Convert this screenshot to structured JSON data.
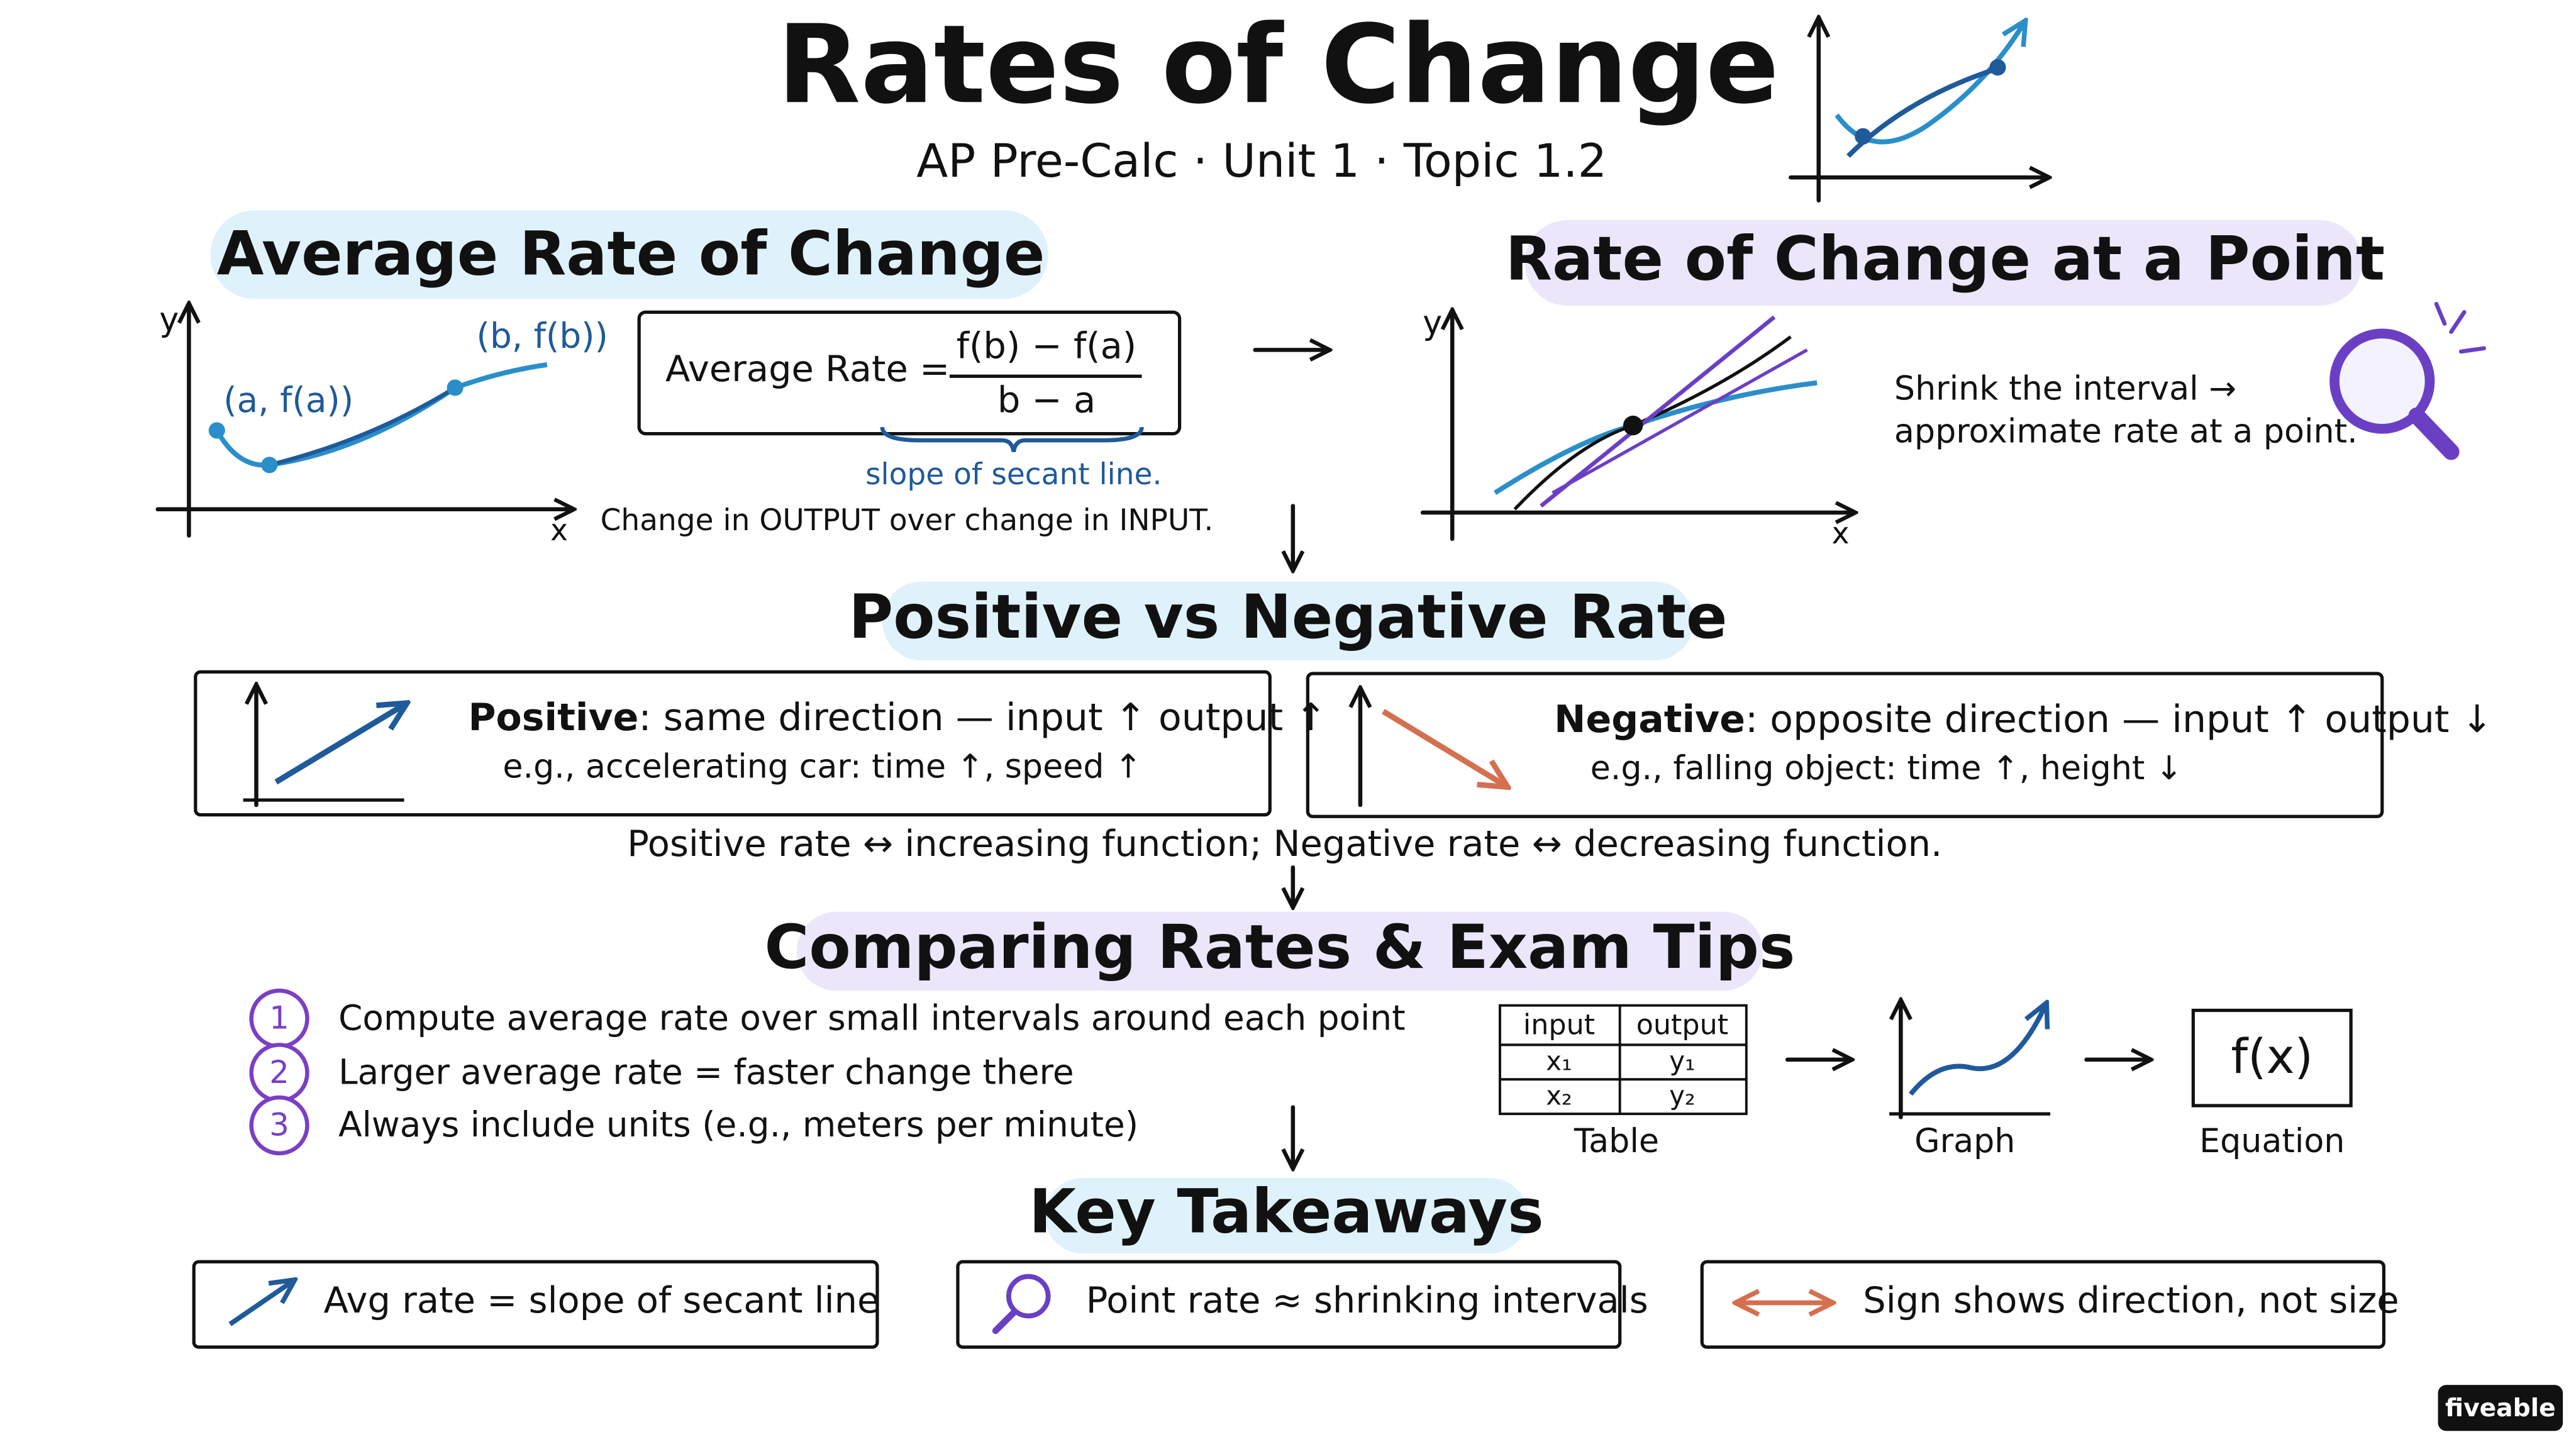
{
  "header": {
    "title": "Rates of Change",
    "subtitle": "AP Pre-Calc · Unit 1 · Topic 1.2"
  },
  "average": {
    "heading": "Average Rate of Change",
    "y_label": "y",
    "x_label": "x",
    "point_a": "(a, f(a))",
    "point_b": "(b, f(b))",
    "formula_label": "Average Rate =",
    "numerator": "f(b) − f(a)",
    "denominator": "b − a",
    "brace_note": "slope of secant line.",
    "caption": "Change in OUTPUT over change in INPUT."
  },
  "point": {
    "heading": "Rate of Change at a Point",
    "y_label": "y",
    "x_label": "x",
    "note": [
      "Shrink the interval →",
      "approximate rate at a point."
    ]
  },
  "sign": {
    "heading": "Positive vs Negative Rate",
    "positive": {
      "term": "Positive",
      "description": ": same direction — input ↑ output ↑",
      "example": "e.g., accelerating car: time ↑, speed ↑"
    },
    "negative": {
      "term": "Negative",
      "description": ": opposite direction — input ↑ output ↓",
      "example": "e.g., falling object: time ↑, height ↓"
    },
    "note": "Positive rate ↔ increasing function; Negative rate ↔ decreasing function."
  },
  "tips": {
    "heading": "Comparing Rates & Exam Tips",
    "items": [
      {
        "number": "1",
        "text": "Compute average rate over small intervals around each point"
      },
      {
        "number": "2",
        "text": "Larger average rate = faster change there"
      },
      {
        "number": "3",
        "text": "Always include units (e.g., meters per minute)"
      }
    ],
    "table": {
      "header": [
        "input",
        "output"
      ],
      "rows": [
        [
          "x₁",
          "y₁"
        ],
        [
          "x₂",
          "y₂"
        ]
      ]
    },
    "table_label": "Table",
    "graph_label": "Graph",
    "equation": "f(x)",
    "equation_label": "Equation"
  },
  "takeaways": {
    "heading": "Key Takeaways",
    "items": [
      "Avg rate = slope of secant line",
      "Point rate ≈ shrinking intervals",
      "Sign shows direction, not size"
    ]
  },
  "brand": "fiveable"
}
